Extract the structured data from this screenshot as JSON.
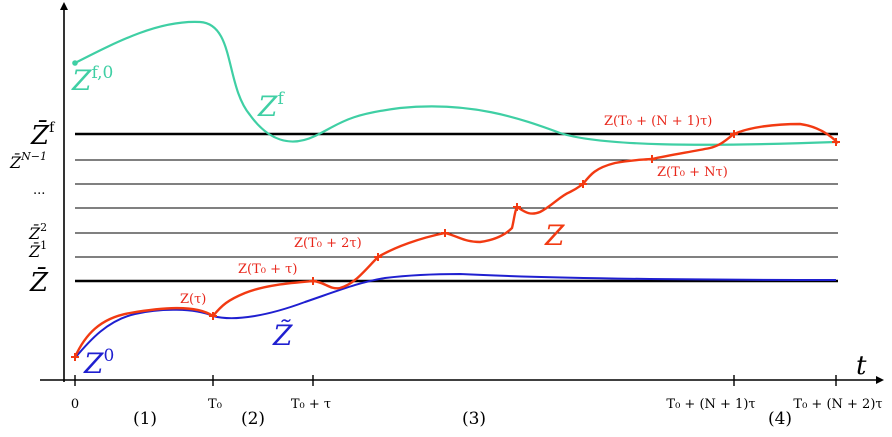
{
  "axis": {
    "t_label": "t",
    "x_ticks": [
      {
        "id": "tick-0",
        "label": "0"
      },
      {
        "id": "tick-t0",
        "label": "T₀"
      },
      {
        "id": "tick-t0-tau",
        "label": "T₀ + τ"
      },
      {
        "id": "tick-t0-n1",
        "label": "T₀ + (N + 1)τ"
      },
      {
        "id": "tick-t0-n2",
        "label": "T₀ + (N + 2)τ"
      }
    ],
    "phases": [
      "(1)",
      "(2)",
      "(3)",
      "(4)"
    ]
  },
  "levels": {
    "zf_bar": "Z̄",
    "zf_sup": "f",
    "zN1": "Z̄",
    "zN1_sup": "N−1",
    "dots": "...",
    "z2": "Z̄",
    "z2_sup": "2",
    "z1": "Z̄",
    "z1_sup": "1",
    "zbar": "Z̄"
  },
  "curves": {
    "zf_label": "Z",
    "zf_sup": "f",
    "zf0_label": "Z",
    "zf0_sup": "f,0",
    "z_label": "Z",
    "ztilde_label": "Z̃",
    "z0_label": "Z",
    "z0_sup": "0"
  },
  "annotations": [
    {
      "id": "ann-z-tau",
      "text": "Z(τ)"
    },
    {
      "id": "ann-z-t0-tau",
      "text": "Z(T₀ + τ)"
    },
    {
      "id": "ann-z-t0-2tau",
      "text": "Z(T₀ + 2τ)"
    },
    {
      "id": "ann-z-t0-ntau",
      "text": "Z(T₀ + Nτ)"
    },
    {
      "id": "ann-z-t0-n1tau",
      "text": "Z(T₀ + (N + 1)τ)"
    }
  ],
  "colors": {
    "zf_curve": "#3fcfa4",
    "z_curve": "#f23a12",
    "ztilde_curve": "#1f1fd0",
    "annotation": "#e8261a",
    "axis": "#000000"
  }
}
